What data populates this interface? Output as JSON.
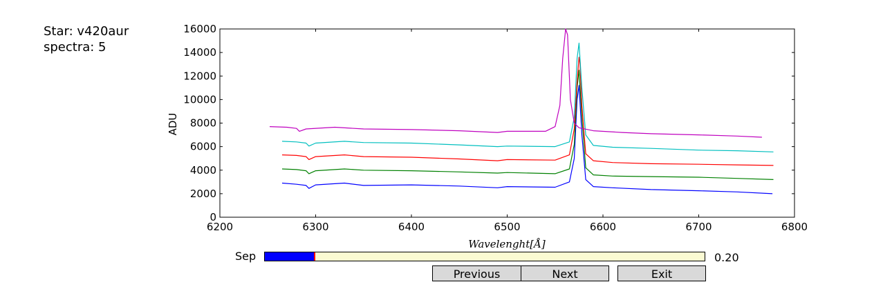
{
  "info": {
    "star_line": "Star: v420aur",
    "spectra_line": "spectra: 5"
  },
  "controls": {
    "slider_label": "Sep",
    "slider_value_text": "0.20",
    "slider_fraction": 0.113,
    "buttons": {
      "previous": "Previous",
      "next": "Next",
      "exit": "Exit"
    }
  },
  "chart_data": {
    "type": "line",
    "title": "",
    "xlabel": "Wavelenght[Å]",
    "ylabel": "ADU",
    "xlim": [
      6200,
      6800
    ],
    "ylim": [
      0,
      16000
    ],
    "xticks": [
      6200,
      6300,
      6400,
      6500,
      6600,
      6700,
      6800
    ],
    "yticks": [
      0,
      2000,
      4000,
      6000,
      8000,
      10000,
      12000,
      14000,
      16000
    ],
    "grid": false,
    "series": [
      {
        "color": "#0000ff",
        "x": [
          6265,
          6280,
          6290,
          6293,
          6300,
          6330,
          6350,
          6400,
          6450,
          6490,
          6500,
          6550,
          6565,
          6570,
          6573,
          6575,
          6578,
          6582,
          6590,
          6610,
          6650,
          6700,
          6740,
          6777
        ],
        "y": [
          2900,
          2800,
          2700,
          2450,
          2750,
          2900,
          2700,
          2750,
          2650,
          2500,
          2600,
          2550,
          3000,
          5000,
          10000,
          11200,
          7000,
          3200,
          2600,
          2500,
          2350,
          2250,
          2150,
          2000
        ]
      },
      {
        "color": "#008000",
        "x": [
          6265,
          6280,
          6290,
          6293,
          6300,
          6330,
          6350,
          6400,
          6450,
          6490,
          6500,
          6550,
          6565,
          6570,
          6573,
          6575,
          6578,
          6582,
          6590,
          6610,
          6650,
          6700,
          6740,
          6778
        ],
        "y": [
          4100,
          4050,
          3950,
          3700,
          3950,
          4100,
          4000,
          3950,
          3850,
          3750,
          3800,
          3700,
          4100,
          6200,
          11000,
          12500,
          8500,
          4200,
          3600,
          3500,
          3450,
          3400,
          3300,
          3200
        ]
      },
      {
        "color": "#ff0000",
        "x": [
          6265,
          6280,
          6290,
          6293,
          6300,
          6330,
          6350,
          6400,
          6450,
          6490,
          6500,
          6550,
          6565,
          6570,
          6573,
          6575,
          6576,
          6578,
          6582,
          6590,
          6610,
          6650,
          6700,
          6740,
          6778
        ],
        "y": [
          5300,
          5250,
          5150,
          4900,
          5150,
          5300,
          5150,
          5100,
          4950,
          4800,
          4900,
          4850,
          5300,
          7500,
          11500,
          13600,
          13000,
          9500,
          5400,
          4800,
          4650,
          4550,
          4500,
          4450,
          4400
        ]
      },
      {
        "color": "#00bfbf",
        "x": [
          6265,
          6280,
          6290,
          6293,
          6300,
          6330,
          6350,
          6400,
          6450,
          6490,
          6500,
          6550,
          6565,
          6570,
          6573,
          6575,
          6578,
          6582,
          6590,
          6610,
          6650,
          6700,
          6740,
          6778
        ],
        "y": [
          6450,
          6400,
          6300,
          6050,
          6300,
          6450,
          6350,
          6300,
          6150,
          6000,
          6050,
          6000,
          6400,
          8500,
          13500,
          14800,
          11000,
          7000,
          6100,
          5950,
          5850,
          5700,
          5650,
          5550
        ]
      },
      {
        "color": "#bf00bf",
        "x": [
          6252,
          6270,
          6280,
          6283,
          6290,
          6320,
          6350,
          6400,
          6450,
          6490,
          6500,
          6540,
          6550,
          6555,
          6558,
          6561,
          6563,
          6566,
          6570,
          6575,
          6590,
          6620,
          6650,
          6700,
          6740,
          6766
        ],
        "y": [
          7700,
          7650,
          7550,
          7300,
          7500,
          7650,
          7500,
          7450,
          7350,
          7200,
          7300,
          7300,
          7700,
          9500,
          13500,
          16000,
          15500,
          10000,
          8000,
          7600,
          7350,
          7200,
          7100,
          7000,
          6900,
          6800
        ]
      }
    ]
  }
}
